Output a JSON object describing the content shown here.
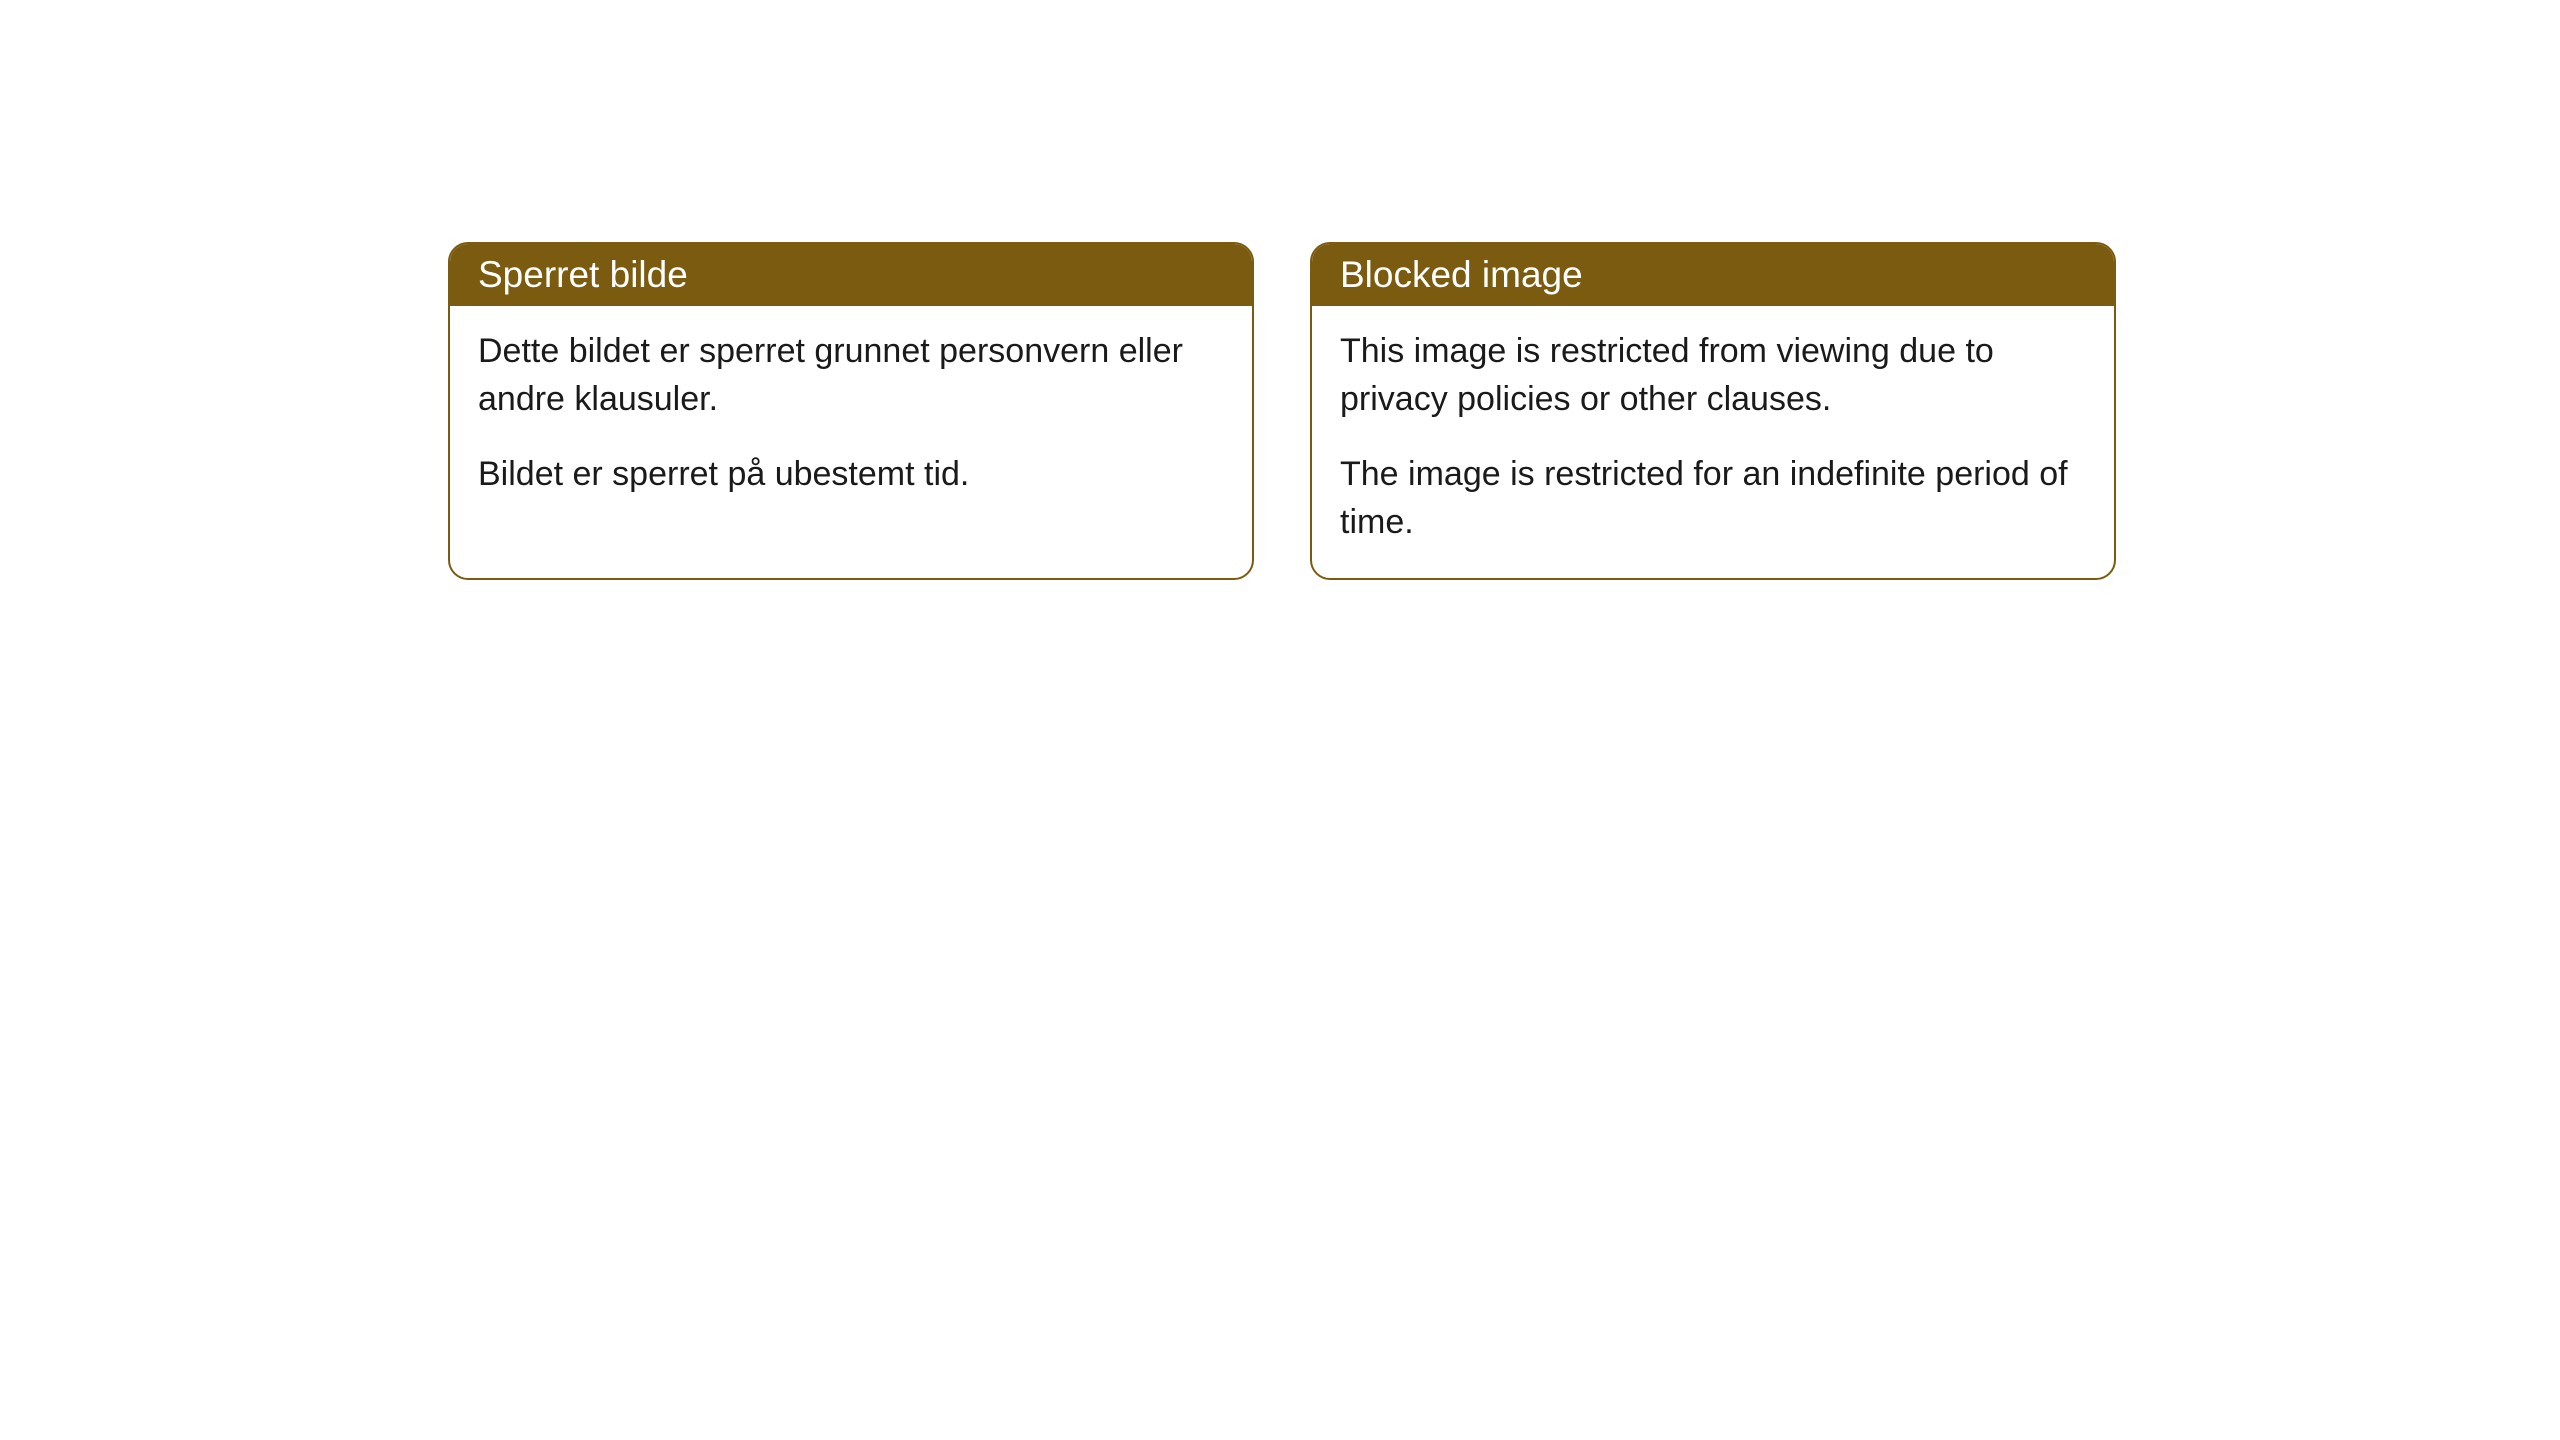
{
  "cards": [
    {
      "title": "Sperret bilde",
      "paragraph1": "Dette bildet er sperret grunnet personvern eller andre klausuler.",
      "paragraph2": "Bildet er sperret på ubestemt tid."
    },
    {
      "title": "Blocked image",
      "paragraph1": "This image is restricted from viewing due to privacy policies or other clauses.",
      "paragraph2": "The image is restricted for an indefinite period of time."
    }
  ],
  "styling": {
    "header_bg_color": "#7a5b10",
    "header_text_color": "#ffffff",
    "border_color": "#7a5b10",
    "body_bg_color": "#ffffff",
    "body_text_color": "#1a1a1a",
    "border_radius": 20,
    "header_fontsize": 37,
    "body_fontsize": 34
  }
}
